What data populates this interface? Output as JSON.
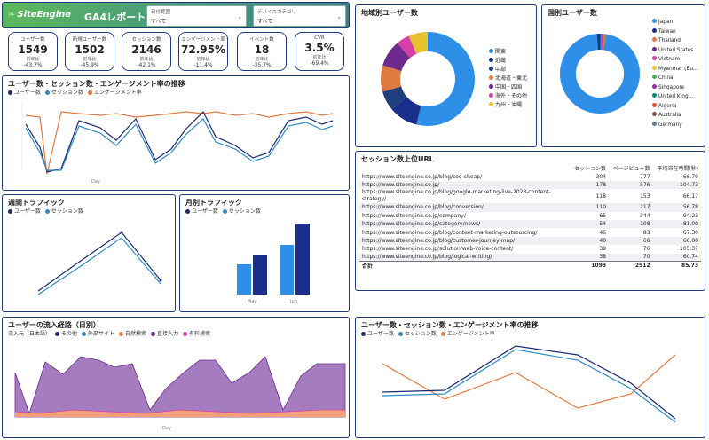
{
  "header": {
    "logo": "SiteEngine",
    "title": "GA4レポート",
    "filter1": {
      "label": "日付範囲",
      "value": "すべて"
    },
    "filter2": {
      "label": "デバイスカテゴリ",
      "value": "すべて"
    }
  },
  "kpis": [
    {
      "label": "ユーザー数",
      "value": "1549",
      "sub": "前年比",
      "delta": "-43.7%"
    },
    {
      "label": "新規ユーザー数",
      "value": "1502",
      "sub": "前年比",
      "delta": "-45.9%"
    },
    {
      "label": "セッション数",
      "value": "2146",
      "sub": "前年比",
      "delta": "-42.1%"
    },
    {
      "label": "エンゲージメント率",
      "value": "72.95%",
      "sub": "前年比",
      "delta": "-11.4%"
    },
    {
      "label": "イベント数",
      "value": "18",
      "sub": "前年比",
      "delta": "-35.7%"
    },
    {
      "label": "CVR",
      "value": "3.5%",
      "sub": "前年比",
      "delta": "-69.4%"
    }
  ],
  "trend_main": {
    "title": "ユーザー数・セッション数・エンゲージメント率の推移",
    "legend": [
      "ユーザー数",
      "セッション数",
      "エンゲージメント率"
    ],
    "xlabel": "Day",
    "colors": [
      "#1a2a6c",
      "#2e8bc0",
      "#e07a3f"
    ]
  },
  "weekly": {
    "title": "週間トラフィック",
    "legend": [
      "ユーザー数",
      "セッション数"
    ]
  },
  "monthly": {
    "title": "月別トラフィック",
    "legend": [
      "ユーザー数",
      "セッション数"
    ],
    "categories": [
      "May",
      "Jun"
    ]
  },
  "inflow": {
    "title": "ユーザーの流入経路（日別）",
    "legend_title": "流入元（日本語）",
    "legend": [
      "その他",
      "外部サイト",
      "自然検索",
      "直接入力",
      "有料検索"
    ],
    "xlabel": "Day"
  },
  "trend_bottom": {
    "title": "ユーザー数・セッション数・エンゲージメント率の推移",
    "legend": [
      "ユーザー数",
      "セッション数",
      "エンゲージメント率"
    ]
  },
  "region_donut": {
    "title": "地域別ユーザー数",
    "legend": [
      "関東",
      "近畿",
      "中部",
      "北海道・東北",
      "中国・四国",
      "海外・その他",
      "九州・沖縄"
    ],
    "colors": [
      "#2e8fe8",
      "#1a2e8c",
      "#1f3f7f",
      "#e07a3f",
      "#6b2a8c",
      "#d63fa8",
      "#e6c230"
    ]
  },
  "country_donut": {
    "title": "国別ユーザー数",
    "legend": [
      "Japan",
      "Taiwan",
      "Thailand",
      "United States",
      "Vietnam",
      "Myanmar (Bu...",
      "China",
      "Singapore",
      "United King...",
      "Algeria",
      "Australia",
      "Germany"
    ],
    "colors": [
      "#2e8fe8",
      "#1a2e8c",
      "#e07a3f",
      "#6b2a8c",
      "#d63fa8",
      "#e6c230",
      "#4caf50",
      "#9c27b0",
      "#00897b",
      "#f44336",
      "#795548",
      "#607d8b"
    ]
  },
  "url_table": {
    "title": "セッション数上位URL",
    "headers": [
      "",
      "セッション数",
      "ページビュー数",
      "平均滞在時間(秒)"
    ],
    "rows": [
      [
        "https://www.siteengine.co.jp/blog/seo-cheap/",
        "304",
        "777",
        "66.79"
      ],
      [
        "https://www.siteengine.co.jp/",
        "178",
        "576",
        "104.73"
      ],
      [
        "https://www.siteengine.co.jp/blog/google-marketing-live-2023-content-strategy/",
        "118",
        "153",
        "66.17"
      ],
      [
        "https://www.siteengine.co.jp/blog/conversion/",
        "110",
        "217",
        "56.78"
      ],
      [
        "https://www.siteengine.co.jp/company/",
        "65",
        "344",
        "94.23"
      ],
      [
        "https://www.siteengine.co.jp/category/news/",
        "54",
        "108",
        "81.00"
      ],
      [
        "https://www.siteengine.co.jp/blog/content-marketing-outsourcing/",
        "46",
        "83",
        "67.30"
      ],
      [
        "https://www.siteengine.co.jp/blog/customer-journey-map/",
        "40",
        "66",
        "66.00"
      ],
      [
        "https://www.siteengine.co.jp/solution/web-voice-content/",
        "39",
        "76",
        "105.37"
      ],
      [
        "https://www.siteengine.co.jp/blog/logical-writing/",
        "38",
        "70",
        "60.74"
      ]
    ],
    "total": [
      "合計",
      "1093",
      "2512",
      "85.73"
    ]
  }
}
